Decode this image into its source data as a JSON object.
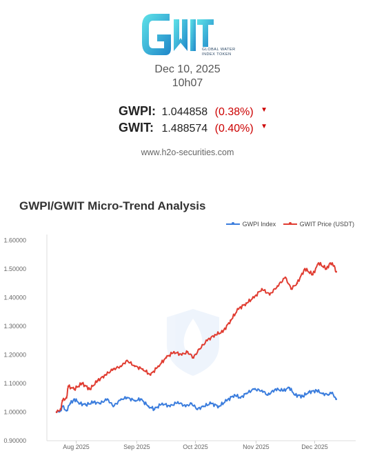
{
  "header": {
    "logo_text": [
      "GLOBAL WATER",
      "INDEX TOKEN"
    ],
    "date": "Dec 10, 2025",
    "time": "10h07",
    "website": "www.h2o-securities.com"
  },
  "quotes": [
    {
      "label": "GWPI:",
      "value": "1.044858",
      "change": "(0.38%)",
      "direction": "down"
    },
    {
      "label": "GWIT:",
      "value": "1.488574",
      "change": "(0.40%)",
      "direction": "down"
    }
  ],
  "colors": {
    "index": "#3b7ddd",
    "price": "#e03c31",
    "down": "#cc0000",
    "logo": "#2ab7d9"
  },
  "chart_data": {
    "type": "line",
    "title": "GWPI/GWIT Micro-Trend Analysis",
    "ylim": [
      0.9,
      1.62
    ],
    "y_ticks": [
      "0.90000",
      "1.00000",
      "1.10000",
      "1.20000",
      "1.30000",
      "1.40000",
      "1.50000",
      "1.60000"
    ],
    "x_range": [
      "2025-07-17",
      "2025-12-22"
    ],
    "x_ticks": [
      {
        "label": "Aug 2025",
        "date": "2025-08-01"
      },
      {
        "label": "Sep 2025",
        "date": "2025-09-01"
      },
      {
        "label": "Oct 2025",
        "date": "2025-10-01"
      },
      {
        "label": "Nov 2025",
        "date": "2025-11-01"
      },
      {
        "label": "Dec 2025",
        "date": "2025-12-01"
      }
    ],
    "legend_position": "top-right",
    "grid": false,
    "series": [
      {
        "name": "GWPI Index",
        "color": "#3b7ddd",
        "points": [
          [
            "2025-07-22",
            1.0
          ],
          [
            "2025-07-24",
            1.005
          ],
          [
            "2025-07-25",
            1.02
          ],
          [
            "2025-07-27",
            1.005
          ],
          [
            "2025-07-29",
            1.03
          ],
          [
            "2025-07-31",
            1.045
          ],
          [
            "2025-08-03",
            1.03
          ],
          [
            "2025-08-06",
            1.025
          ],
          [
            "2025-08-10",
            1.035
          ],
          [
            "2025-08-13",
            1.03
          ],
          [
            "2025-08-17",
            1.045
          ],
          [
            "2025-08-20",
            1.02
          ],
          [
            "2025-08-24",
            1.045
          ],
          [
            "2025-08-27",
            1.05
          ],
          [
            "2025-08-31",
            1.04
          ],
          [
            "2025-09-03",
            1.045
          ],
          [
            "2025-09-07",
            1.02
          ],
          [
            "2025-09-10",
            1.01
          ],
          [
            "2025-09-14",
            1.03
          ],
          [
            "2025-09-18",
            1.02
          ],
          [
            "2025-09-22",
            1.035
          ],
          [
            "2025-09-26",
            1.02
          ],
          [
            "2025-09-29",
            1.03
          ],
          [
            "2025-10-02",
            1.01
          ],
          [
            "2025-10-05",
            1.02
          ],
          [
            "2025-10-09",
            1.03
          ],
          [
            "2025-10-13",
            1.02
          ],
          [
            "2025-10-17",
            1.04
          ],
          [
            "2025-10-21",
            1.06
          ],
          [
            "2025-10-24",
            1.05
          ],
          [
            "2025-10-27",
            1.065
          ],
          [
            "2025-10-31",
            1.08
          ],
          [
            "2025-11-04",
            1.075
          ],
          [
            "2025-11-07",
            1.06
          ],
          [
            "2025-11-11",
            1.08
          ],
          [
            "2025-11-15",
            1.075
          ],
          [
            "2025-11-18",
            1.085
          ],
          [
            "2025-11-21",
            1.06
          ],
          [
            "2025-11-25",
            1.055
          ],
          [
            "2025-11-28",
            1.07
          ],
          [
            "2025-12-02",
            1.075
          ],
          [
            "2025-12-05",
            1.065
          ],
          [
            "2025-12-08",
            1.06
          ],
          [
            "2025-12-10",
            1.068
          ],
          [
            "2025-12-12",
            1.045
          ]
        ]
      },
      {
        "name": "GWIT Price (USDT)",
        "color": "#e03c31",
        "points": [
          [
            "2025-07-22",
            1.0
          ],
          [
            "2025-07-24",
            1.01
          ],
          [
            "2025-07-25",
            1.04
          ],
          [
            "2025-07-27",
            1.05
          ],
          [
            "2025-07-28",
            1.09
          ],
          [
            "2025-07-31",
            1.08
          ],
          [
            "2025-08-04",
            1.1
          ],
          [
            "2025-08-08",
            1.08
          ],
          [
            "2025-08-12",
            1.11
          ],
          [
            "2025-08-16",
            1.13
          ],
          [
            "2025-08-20",
            1.15
          ],
          [
            "2025-08-24",
            1.16
          ],
          [
            "2025-08-27",
            1.18
          ],
          [
            "2025-08-31",
            1.16
          ],
          [
            "2025-09-04",
            1.15
          ],
          [
            "2025-09-08",
            1.13
          ],
          [
            "2025-09-12",
            1.16
          ],
          [
            "2025-09-16",
            1.19
          ],
          [
            "2025-09-20",
            1.21
          ],
          [
            "2025-09-24",
            1.2
          ],
          [
            "2025-09-27",
            1.21
          ],
          [
            "2025-09-30",
            1.19
          ],
          [
            "2025-10-03",
            1.22
          ],
          [
            "2025-10-07",
            1.25
          ],
          [
            "2025-10-11",
            1.27
          ],
          [
            "2025-10-15",
            1.28
          ],
          [
            "2025-10-19",
            1.32
          ],
          [
            "2025-10-23",
            1.36
          ],
          [
            "2025-10-27",
            1.38
          ],
          [
            "2025-10-31",
            1.4
          ],
          [
            "2025-11-04",
            1.43
          ],
          [
            "2025-11-08",
            1.41
          ],
          [
            "2025-11-12",
            1.44
          ],
          [
            "2025-11-16",
            1.47
          ],
          [
            "2025-11-19",
            1.43
          ],
          [
            "2025-11-22",
            1.45
          ],
          [
            "2025-11-26",
            1.5
          ],
          [
            "2025-11-30",
            1.48
          ],
          [
            "2025-12-03",
            1.52
          ],
          [
            "2025-12-07",
            1.5
          ],
          [
            "2025-12-09",
            1.52
          ],
          [
            "2025-12-11",
            1.51
          ],
          [
            "2025-12-12",
            1.49
          ]
        ]
      }
    ]
  }
}
